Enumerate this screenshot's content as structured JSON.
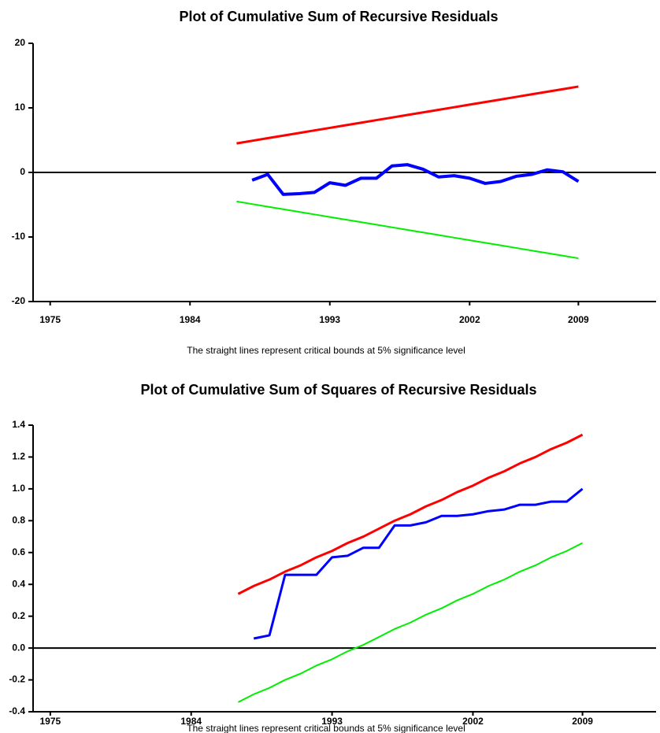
{
  "chart_data": [
    {
      "type": "line",
      "title": "Plot of Cumulative Sum of Recursive Residuals",
      "note": "The straight lines represent critical bounds at 5% significance level",
      "x": [
        1987,
        1988,
        1989,
        1990,
        1991,
        1992,
        1993,
        1994,
        1995,
        1996,
        1997,
        1998,
        1999,
        2000,
        2001,
        2002,
        2003,
        2004,
        2005,
        2006,
        2007,
        2008,
        2009
      ],
      "series": [
        {
          "color": "#ff0000",
          "values": [
            4.5,
            4.9,
            5.3,
            5.7,
            6.1,
            6.5,
            6.9,
            7.3,
            7.7,
            8.1,
            8.5,
            8.9,
            9.3,
            9.7,
            10.1,
            10.5,
            10.9,
            11.3,
            11.7,
            12.1,
            12.5,
            12.9,
            13.3
          ]
        },
        {
          "color": "#00ee00",
          "values": [
            -4.5,
            -4.9,
            -5.3,
            -5.7,
            -6.1,
            -6.5,
            -6.9,
            -7.3,
            -7.7,
            -8.1,
            -8.5,
            -8.9,
            -9.3,
            -9.7,
            -10.1,
            -10.5,
            -10.9,
            -11.3,
            -11.7,
            -12.1,
            -12.5,
            -12.9,
            -13.3
          ]
        },
        {
          "color": "#0000ff",
          "values": [
            null,
            -1.2,
            -0.3,
            -3.4,
            -3.3,
            -3.1,
            -1.6,
            -2.0,
            -0.9,
            -0.9,
            1.0,
            1.2,
            0.5,
            -0.7,
            -0.5,
            -0.9,
            -1.7,
            -1.4,
            -0.6,
            -0.3,
            0.4,
            0.1,
            -1.4
          ]
        }
      ],
      "xlim": [
        1973.9,
        2014
      ],
      "xticks": [
        1975,
        1984,
        1993,
        2002,
        2009
      ],
      "ylim": [
        -20,
        20
      ],
      "yticks": [
        -20,
        -10,
        0,
        10,
        20
      ],
      "zero_line": true
    },
    {
      "type": "line",
      "title": "Plot of Cumulative Sum of Squares of Recursive Residuals",
      "note": "The straight lines represent critical bounds at 5% significance level",
      "x": [
        1987,
        1988,
        1989,
        1990,
        1991,
        1992,
        1993,
        1994,
        1995,
        1996,
        1997,
        1998,
        1999,
        2000,
        2001,
        2002,
        2003,
        2004,
        2005,
        2006,
        2007,
        2008,
        2009
      ],
      "series": [
        {
          "color": "#ff0000",
          "values": [
            0.34,
            0.39,
            0.43,
            0.48,
            0.52,
            0.57,
            0.61,
            0.66,
            0.7,
            0.75,
            0.8,
            0.84,
            0.89,
            0.93,
            0.98,
            1.02,
            1.07,
            1.11,
            1.16,
            1.2,
            1.25,
            1.29,
            1.34
          ]
        },
        {
          "color": "#00ee00",
          "values": [
            -0.34,
            -0.29,
            -0.25,
            -0.2,
            -0.16,
            -0.11,
            -0.07,
            -0.02,
            0.02,
            0.07,
            0.12,
            0.16,
            0.21,
            0.25,
            0.3,
            0.34,
            0.39,
            0.43,
            0.48,
            0.52,
            0.57,
            0.61,
            0.66
          ]
        },
        {
          "color": "#0000ff",
          "values": [
            null,
            0.06,
            0.08,
            0.46,
            0.46,
            0.46,
            0.57,
            0.58,
            0.63,
            0.63,
            0.77,
            0.77,
            0.79,
            0.83,
            0.83,
            0.84,
            0.86,
            0.87,
            0.9,
            0.9,
            0.92,
            0.92,
            1.0
          ]
        }
      ],
      "xlim": [
        1973.9,
        2013.7
      ],
      "xticks": [
        1975,
        1984,
        1993,
        2002,
        2009
      ],
      "ylim": [
        -0.4,
        1.4
      ],
      "yticks": [
        -0.4,
        -0.2,
        {
          "value": 0,
          "label": "0.0"
        },
        0.2,
        0.4,
        0.6,
        0.8,
        {
          "value": 1,
          "label": "1.0"
        },
        1.2,
        1.4
      ],
      "zero_line": true
    }
  ]
}
